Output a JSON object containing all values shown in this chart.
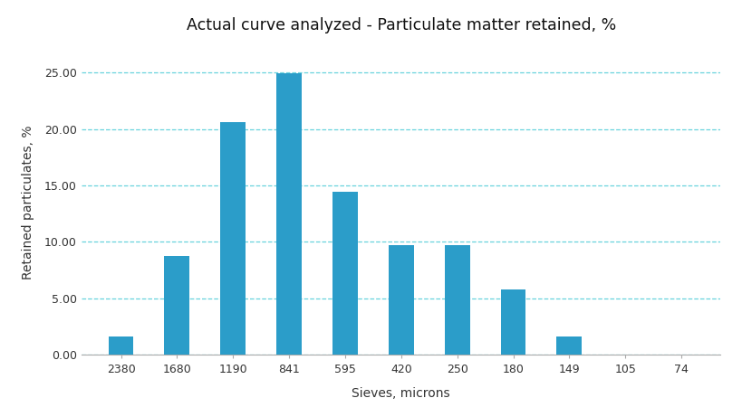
{
  "title": "Actual curve analyzed - Particulate matter retained, %",
  "xlabel": "Sieves, microns",
  "ylabel": "Retained particulates, %",
  "categories": [
    "2380",
    "1680",
    "1190",
    "841",
    "595",
    "420",
    "250",
    "180",
    "149",
    "105",
    "74"
  ],
  "values": [
    1.6,
    8.7,
    20.6,
    24.9,
    14.4,
    9.7,
    9.7,
    5.8,
    1.6,
    0.0,
    0.0
  ],
  "bar_color": "#2B9DC9",
  "ylim": [
    0,
    27
  ],
  "yticks": [
    0.0,
    5.0,
    10.0,
    15.0,
    20.0,
    25.0
  ],
  "grid_color": "#4DCCD8",
  "background_color": "#ffffff",
  "title_fontsize": 12.5,
  "axis_label_fontsize": 10,
  "tick_fontsize": 9,
  "bar_width": 0.45
}
